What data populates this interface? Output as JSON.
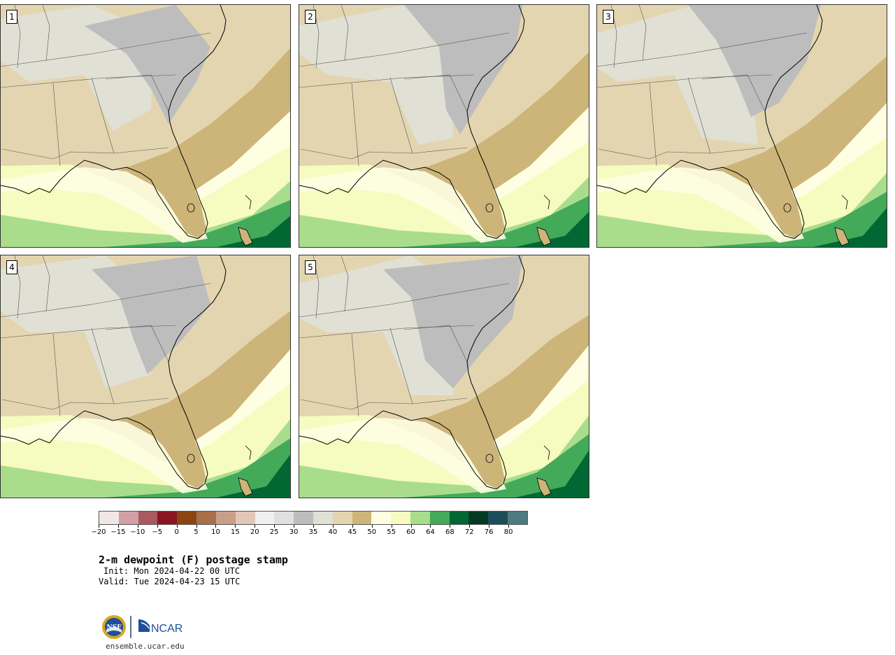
{
  "panels": [
    {
      "label": "1"
    },
    {
      "label": "2"
    },
    {
      "label": "3"
    },
    {
      "label": "4"
    },
    {
      "label": "5"
    }
  ],
  "colorbar": {
    "colors": [
      "#f3e6e6",
      "#d0a0a5",
      "#a85a60",
      "#8a1520",
      "#8a4510",
      "#a87048",
      "#c8a088",
      "#e2c6b8",
      "#f0f0f0",
      "#e0e0e0",
      "#bdbdbd",
      "#e0e0d5",
      "#e3d5b0",
      "#cdb478",
      "#fefee2",
      "#f6fbbf",
      "#a9dd8c",
      "#43aa5a",
      "#026833",
      "#043a22",
      "#1a4e5a",
      "#4f7a80"
    ],
    "tick_labels": [
      "−20",
      "−15",
      "−10",
      "−5",
      "0",
      "5",
      "10",
      "15",
      "20",
      "25",
      "30",
      "35",
      "40",
      "45",
      "50",
      "55",
      "60",
      "64",
      "68",
      "72",
      "76",
      "80"
    ]
  },
  "title": "2-m dewpoint (F) postage stamp",
  "init_label": "Init:",
  "init_value": "Mon 2024-04-22 00 UTC",
  "valid_label": "Valid:",
  "valid_value": "Tue 2024-04-23 15 UTC",
  "logos": {
    "nsf": "NSF",
    "ncar": "NCAR"
  },
  "website": "ensemble.ucar.edu"
}
